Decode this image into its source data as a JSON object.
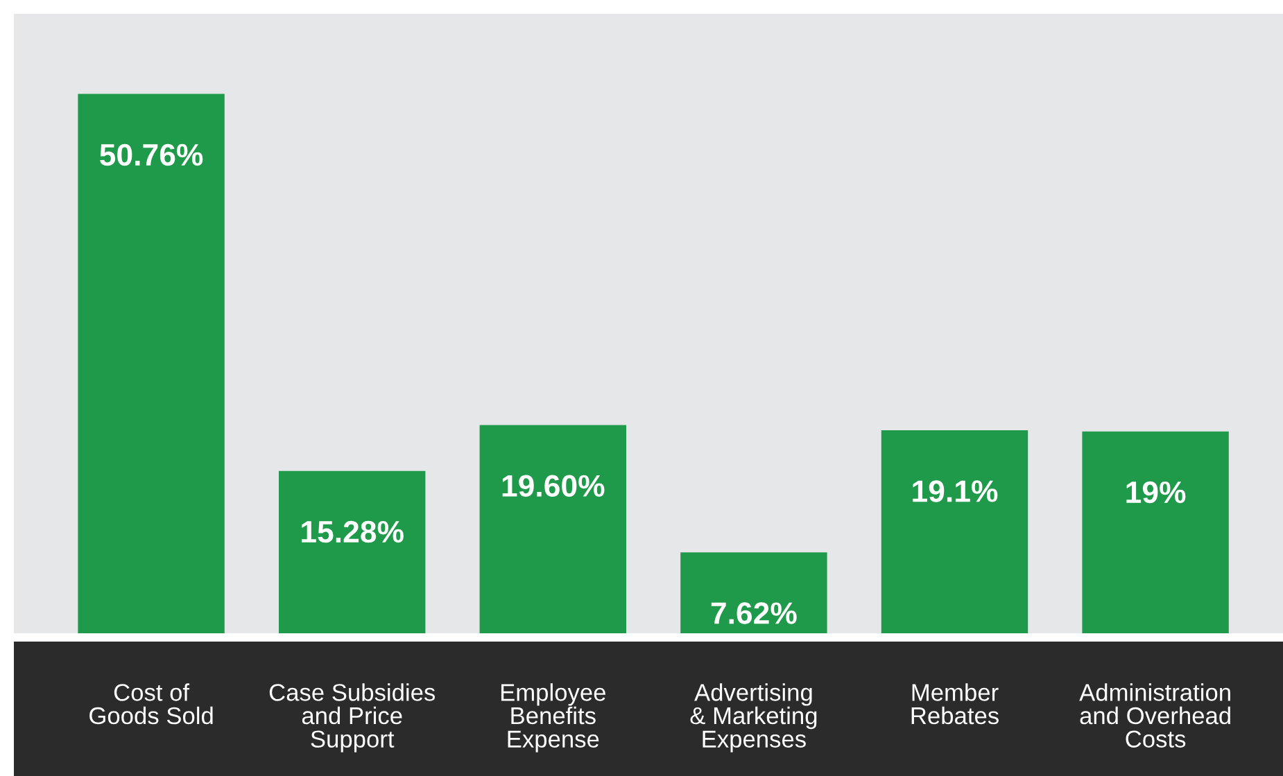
{
  "chart_data": {
    "type": "bar",
    "categories": [
      "Cost of\nGoods Sold",
      "Case Subsidies\nand Price\nSupport",
      "Employee\nBenefits\nExpense",
      "Advertising\n& Marketing\nExpenses",
      "Member\nRebates",
      "Administration\nand Overhead\nCosts"
    ],
    "values": [
      50.76,
      15.28,
      19.6,
      7.62,
      19.1,
      19
    ],
    "value_labels": [
      "50.76%",
      "15.28%",
      "19.60%",
      "7.62%",
      "19.1%",
      "19%"
    ],
    "color": "#1f9a4a",
    "ylim": [
      0,
      58.3
    ],
    "tick_labels": "x",
    "grid": false,
    "legend": false
  }
}
